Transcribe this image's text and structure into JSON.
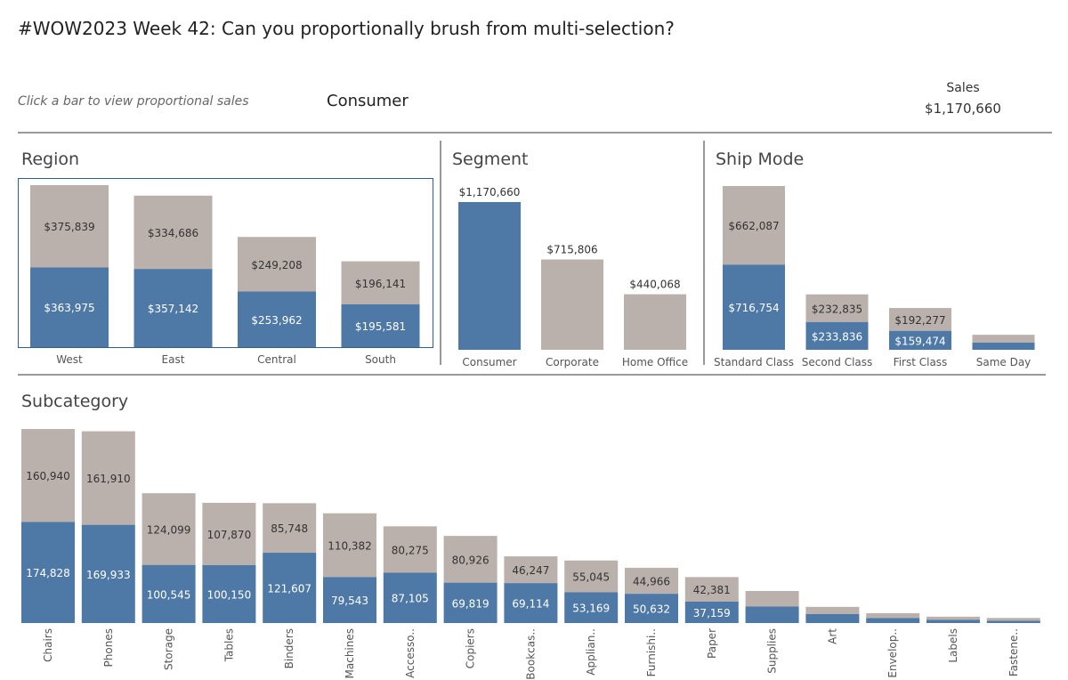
{
  "header": {
    "title": "#WOW2023 Week 42: Can you proportionally brush from multi-selection?",
    "hint": "Click a bar to view proportional sales",
    "selected_segment": "Consumer",
    "kpi_label": "Sales",
    "kpi_value": "$1,170,660"
  },
  "colors": {
    "selected": "#4e79a7",
    "total": "#bab0ac",
    "axis": "#999999"
  },
  "chart_data": [
    {
      "id": "region",
      "type": "bar",
      "title": "Region",
      "stacked": true,
      "categories": [
        "West",
        "East",
        "Central",
        "South"
      ],
      "series": [
        {
          "name": "Selected",
          "values": [
            363975,
            357142,
            253962,
            195581
          ],
          "labels": [
            "$363,975",
            "$357,142",
            "$253,962",
            "$195,581"
          ]
        },
        {
          "name": "Rest",
          "values": [
            375839,
            334686,
            249208,
            196141
          ],
          "labels": [
            "$375,839",
            "$334,686",
            "$249,208",
            "$196,141"
          ]
        }
      ]
    },
    {
      "id": "segment",
      "type": "bar",
      "title": "Segment",
      "stacked": false,
      "categories": [
        "Consumer",
        "Corporate",
        "Home Office"
      ],
      "series": [
        {
          "name": "Sales",
          "values": [
            1170660,
            715806,
            440068
          ],
          "labels": [
            "$1,170,660",
            "$715,806",
            "$440,068"
          ],
          "highlight": [
            true,
            false,
            false
          ]
        }
      ]
    },
    {
      "id": "shipmode",
      "type": "bar",
      "title": "Ship Mode",
      "stacked": true,
      "categories": [
        "Standard Class",
        "Second Class",
        "First Class",
        "Same Day"
      ],
      "series": [
        {
          "name": "Selected",
          "values": [
            716754,
            233836,
            159474,
            60596
          ],
          "labels": [
            "$716,754",
            "$233,836",
            "$159,474",
            ""
          ]
        },
        {
          "name": "Rest",
          "values": [
            662087,
            232835,
            192277,
            65615
          ],
          "labels": [
            "$662,087",
            "$232,835",
            "$192,277",
            ""
          ]
        }
      ]
    },
    {
      "id": "subcategory",
      "type": "bar",
      "title": "Subcategory",
      "stacked": true,
      "categories": [
        "Chairs",
        "Phones",
        "Storage",
        "Tables",
        "Binders",
        "Machines",
        "Accesso..",
        "Copiers",
        "Bookcas..",
        "Applian..",
        "Furnishi..",
        "Paper",
        "Supplies",
        "Art",
        "Envelop..",
        "Labels",
        "Fastene.."
      ],
      "series": [
        {
          "name": "Selected",
          "values": [
            174828,
            169933,
            100545,
            100150,
            121607,
            79543,
            87105,
            69819,
            69114,
            53169,
            50632,
            37159,
            28500,
            15500,
            8500,
            5500,
            3800
          ],
          "labels": [
            "174,828",
            "169,933",
            "100,545",
            "100,150",
            "121,607",
            "79,543",
            "87,105",
            "69,819",
            "69,114",
            "53,169",
            "50,632",
            "37,159",
            "",
            "",
            "",
            "",
            ""
          ]
        },
        {
          "name": "Rest",
          "values": [
            160940,
            161910,
            124099,
            107870,
            85748,
            110382,
            80275,
            80926,
            46247,
            55045,
            44966,
            42381,
            27000,
            12500,
            8500,
            5500,
            5000
          ],
          "labels": [
            "160,940",
            "161,910",
            "124,099",
            "107,870",
            "85,748",
            "110,382",
            "80,275",
            "80,926",
            "46,247",
            "55,045",
            "44,966",
            "42,381",
            "",
            "",
            "",
            "",
            ""
          ]
        }
      ]
    }
  ]
}
